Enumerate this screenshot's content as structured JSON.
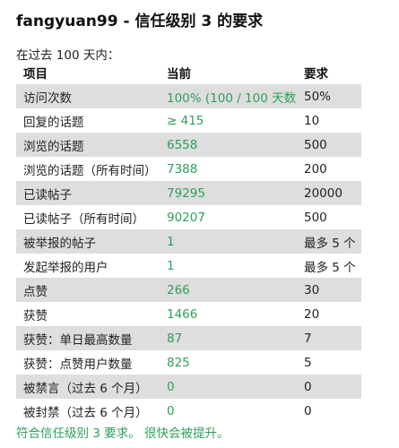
{
  "title": "fangyuan99 - 信任级别 3 的要求",
  "subtitle": "在过去 100 天内：",
  "headers": {
    "item": "项目",
    "current": "当前",
    "required": "要求"
  },
  "rows": [
    {
      "item": "访问次数",
      "current": "100% (100 / 100 天数)",
      "required": "50%"
    },
    {
      "item": "回复的话题",
      "current": "≥ 415",
      "required": "10"
    },
    {
      "item": "浏览的话题",
      "current": "6558",
      "required": "500"
    },
    {
      "item": "浏览的话题（所有时间）",
      "current": "7388",
      "required": "200"
    },
    {
      "item": "已读帖子",
      "current": "79295",
      "required": "20000"
    },
    {
      "item": "已读帖子（所有时间）",
      "current": "90207",
      "required": "500"
    },
    {
      "item": "被举报的帖子",
      "current": "1",
      "required": "最多 5 个"
    },
    {
      "item": "发起举报的用户",
      "current": "1",
      "required": "最多 5 个"
    },
    {
      "item": "点赞",
      "current": "266",
      "required": "30"
    },
    {
      "item": "获赞",
      "current": "1466",
      "required": "20"
    },
    {
      "item": "获赞：单日最高数量",
      "current": "87",
      "required": "7"
    },
    {
      "item": "获赞：点赞用户数量",
      "current": "825",
      "required": "5"
    },
    {
      "item": "被禁言（过去 6 个月）",
      "current": "0",
      "required": "0"
    },
    {
      "item": "被封禁（过去 6 个月）",
      "current": "0",
      "required": "0"
    }
  ],
  "summary": "符合信任级别 3 要求。 很快会被提升。",
  "colors": {
    "met": "#2e9e5b",
    "stripe": "#dedede"
  }
}
